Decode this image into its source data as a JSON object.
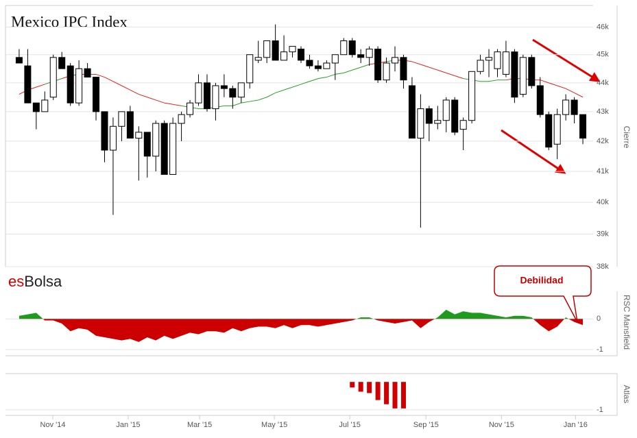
{
  "brand": {
    "prefix": "es",
    "suffix": "Bolsa"
  },
  "chart_data": [
    {
      "type": "candlestick",
      "title": "Mexico IPC Index",
      "y_label": "Cierre",
      "log_scale": true,
      "grid": true,
      "xlim": [
        -1.6,
        67.2
      ],
      "ylim": [
        38000,
        46800
      ],
      "yticks": [
        {
          "value": 38000,
          "label": "38k"
        },
        {
          "value": 39000,
          "label": "39k"
        },
        {
          "value": 40000,
          "label": "40k"
        },
        {
          "value": 41000,
          "label": "41k"
        },
        {
          "value": 42000,
          "label": "42k"
        },
        {
          "value": 43000,
          "label": "43k"
        },
        {
          "value": 44000,
          "label": "44k"
        },
        {
          "value": 45000,
          "label": "45k"
        },
        {
          "value": 46000,
          "label": "46k"
        }
      ],
      "colors": {
        "up": "#ffffff",
        "down": "#000000",
        "ma_above": "#2e9a2e",
        "ma_below": "#e02020"
      },
      "open": [
        44900,
        44600,
        43300,
        43000,
        43500,
        44900,
        44600,
        43300,
        44500,
        44200,
        43000,
        41700,
        42500,
        43000,
        42100,
        42300,
        41500,
        42600,
        40900,
        42600,
        42900,
        43300,
        44000,
        43100,
        43900,
        43800,
        43500,
        44000,
        44800,
        44900,
        45500,
        44800,
        45100,
        45200,
        44800,
        44600,
        44500,
        44700,
        45000,
        45500,
        45000,
        44900,
        45200,
        44100,
        44700,
        44900,
        43900,
        42100,
        43100,
        42600,
        42700,
        43400,
        42400,
        42700,
        44400,
        44800,
        44500,
        44300,
        45100,
        43600,
        44900,
        43900,
        42900,
        41900,
        42900,
        43400,
        42900
      ],
      "high": [
        45200,
        45200,
        43300,
        43700,
        45000,
        45100,
        44700,
        44800,
        44700,
        44200,
        43000,
        42800,
        43000,
        43200,
        42500,
        42300,
        42700,
        42700,
        42800,
        43000,
        43400,
        44300,
        44300,
        44000,
        44300,
        43900,
        44000,
        45000,
        45500,
        45500,
        46100,
        45700,
        45300,
        45300,
        45000,
        44800,
        44800,
        45000,
        45600,
        45600,
        45200,
        45300,
        45300,
        44900,
        45300,
        45000,
        44200,
        43600,
        43200,
        43200,
        43500,
        43500,
        42800,
        44400,
        45000,
        45200,
        45200,
        45500,
        45200,
        45000,
        45000,
        44200,
        43000,
        43100,
        43600,
        43500,
        42900
      ],
      "low": [
        44700,
        43300,
        42400,
        43000,
        43400,
        44500,
        43200,
        43200,
        44200,
        42700,
        41300,
        39600,
        42000,
        42100,
        40700,
        40800,
        41000,
        40900,
        40900,
        42000,
        42800,
        43200,
        43000,
        42700,
        43500,
        43100,
        43300,
        43800,
        44700,
        44700,
        44800,
        44800,
        44900,
        44700,
        44500,
        44400,
        44500,
        44100,
        45000,
        44900,
        44700,
        44600,
        44000,
        44000,
        44400,
        43800,
        42100,
        39200,
        42000,
        42400,
        42300,
        42200,
        41700,
        42600,
        44300,
        44200,
        44200,
        44200,
        43300,
        43500,
        43800,
        42800,
        41700,
        41400,
        42700,
        42600,
        41900
      ],
      "close": [
        44700,
        43300,
        43000,
        43400,
        44900,
        44500,
        43300,
        44500,
        44200,
        43000,
        41700,
        42500,
        43000,
        42100,
        42300,
        41500,
        42600,
        40900,
        42600,
        42900,
        43300,
        44000,
        43100,
        43900,
        43800,
        43500,
        44000,
        45000,
        44900,
        45500,
        44800,
        45100,
        45300,
        44800,
        44600,
        44500,
        44700,
        45000,
        45500,
        45000,
        44900,
        45200,
        44100,
        44700,
        44900,
        44100,
        42100,
        43100,
        42600,
        42700,
        43400,
        42300,
        42700,
        44400,
        44800,
        44900,
        45100,
        45100,
        43500,
        44900,
        43900,
        42900,
        41800,
        42900,
        43400,
        42900,
        42100
      ],
      "moving_average": [
        43600,
        43750,
        43850,
        43950,
        44050,
        44150,
        44250,
        44300,
        44300,
        44300,
        44200,
        44050,
        43900,
        43750,
        43600,
        43500,
        43400,
        43300,
        43250,
        43200,
        43150,
        43100,
        43100,
        43150,
        43200,
        43200,
        43300,
        43350,
        43400,
        43500,
        43650,
        43750,
        43850,
        43950,
        44050,
        44150,
        44200,
        44300,
        44350,
        44450,
        44550,
        44650,
        44700,
        44750,
        44800,
        44800,
        44750,
        44650,
        44550,
        44450,
        44350,
        44250,
        44150,
        44100,
        44050,
        44050,
        44100,
        44100,
        44150,
        44150,
        44100,
        44100,
        44000,
        43900,
        43800,
        43650,
        43500
      ]
    },
    {
      "type": "area",
      "y_label": "RSC Mansfield",
      "annotation": "Debilidad",
      "grid": true,
      "xlim": [
        -1.6,
        67.2
      ],
      "ylim": [
        -1.2,
        0.9
      ],
      "yticks": [
        0,
        -1
      ],
      "colors": {
        "positive": "#1e9a1e",
        "negative": "#cc0000"
      },
      "values": [
        0.1,
        0.15,
        0.2,
        -0.05,
        -0.05,
        -0.15,
        -0.4,
        -0.3,
        -0.35,
        -0.55,
        -0.6,
        -0.65,
        -0.7,
        -0.65,
        -0.75,
        -0.6,
        -0.7,
        -0.55,
        -0.65,
        -0.55,
        -0.45,
        -0.5,
        -0.4,
        -0.4,
        -0.45,
        -0.3,
        -0.4,
        -0.3,
        -0.25,
        -0.25,
        -0.3,
        -0.2,
        -0.3,
        -0.2,
        -0.2,
        -0.25,
        -0.2,
        -0.15,
        -0.1,
        -0.05,
        0.05,
        0.05,
        -0.05,
        -0.1,
        -0.15,
        -0.1,
        -0.05,
        -0.3,
        -0.1,
        0.05,
        0.3,
        0.15,
        0.25,
        0.2,
        0.2,
        0.15,
        0.1,
        0.05,
        0.1,
        0.1,
        0.05,
        -0.2,
        -0.4,
        -0.25,
        0.05,
        -0.1,
        -0.2
      ]
    },
    {
      "type": "bar",
      "y_label": "Atlas",
      "color": "#d00000",
      "grid": true,
      "xlim": [
        -1.6,
        67.2
      ],
      "ylim": [
        -1.2,
        0.3
      ],
      "yticks": [
        -1
      ],
      "xticks": [
        {
          "value": 3.94,
          "label": "Nov '14"
        },
        {
          "value": 12.77,
          "label": "Jan '15"
        },
        {
          "value": 21.13,
          "label": "Mar '15"
        },
        {
          "value": 29.88,
          "label": "May '15"
        },
        {
          "value": 38.71,
          "label": "Jul '15"
        },
        {
          "value": 47.63,
          "label": "Sep '15"
        },
        {
          "value": 56.47,
          "label": "Nov '15"
        },
        {
          "value": 65.14,
          "label": "Jan '16"
        }
      ],
      "values": [
        null,
        null,
        null,
        null,
        null,
        null,
        null,
        null,
        null,
        null,
        null,
        null,
        null,
        null,
        null,
        null,
        null,
        null,
        null,
        null,
        null,
        null,
        null,
        null,
        null,
        null,
        null,
        null,
        null,
        null,
        null,
        null,
        null,
        null,
        null,
        null,
        null,
        null,
        null,
        -0.2,
        -0.35,
        -0.4,
        -0.65,
        -0.8,
        -0.95,
        -0.95,
        null,
        null,
        null,
        null,
        null,
        null,
        null,
        null,
        null,
        null,
        null,
        null,
        null,
        null,
        null,
        null,
        null,
        null,
        null,
        null,
        null
      ]
    }
  ]
}
